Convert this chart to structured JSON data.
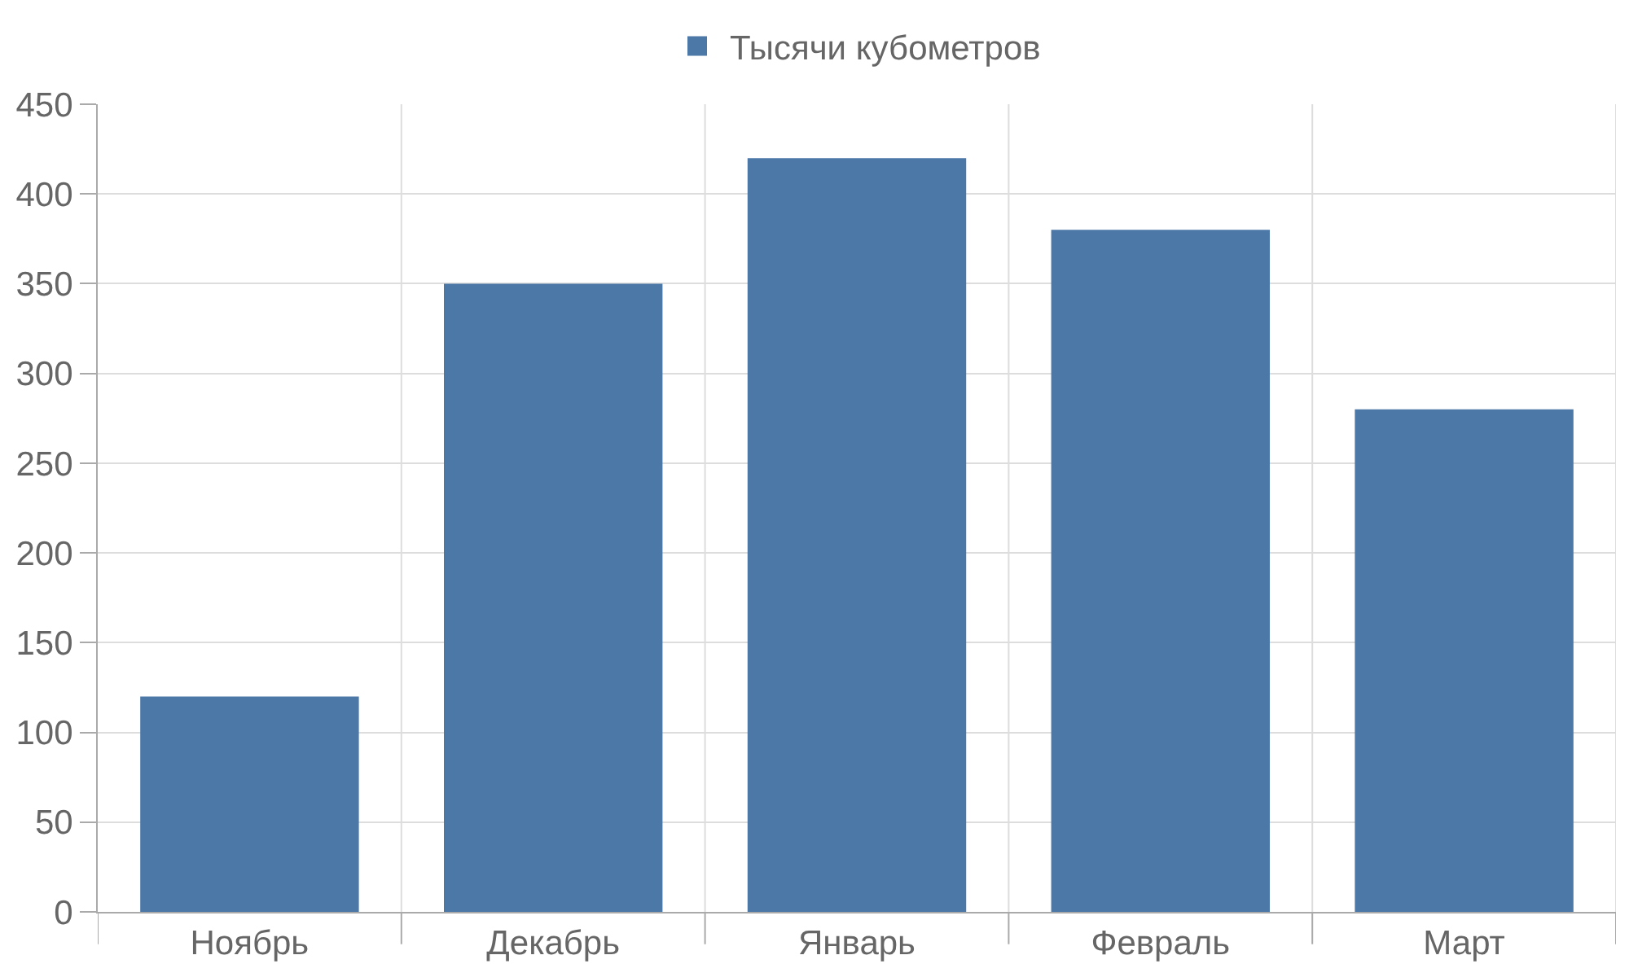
{
  "chart_data": {
    "type": "bar",
    "categories": [
      "Ноябрь",
      "Декабрь",
      "Январь",
      "Февраль",
      "Март"
    ],
    "series": [
      {
        "name": "Тысячи кубометров",
        "color": "#4c78a8",
        "values": [
          120,
          350,
          420,
          380,
          280
        ]
      }
    ],
    "ylim": [
      0,
      450
    ],
    "yticks": [
      0,
      50,
      100,
      150,
      200,
      250,
      300,
      350,
      400,
      450
    ],
    "grid": true,
    "legend": "top"
  }
}
